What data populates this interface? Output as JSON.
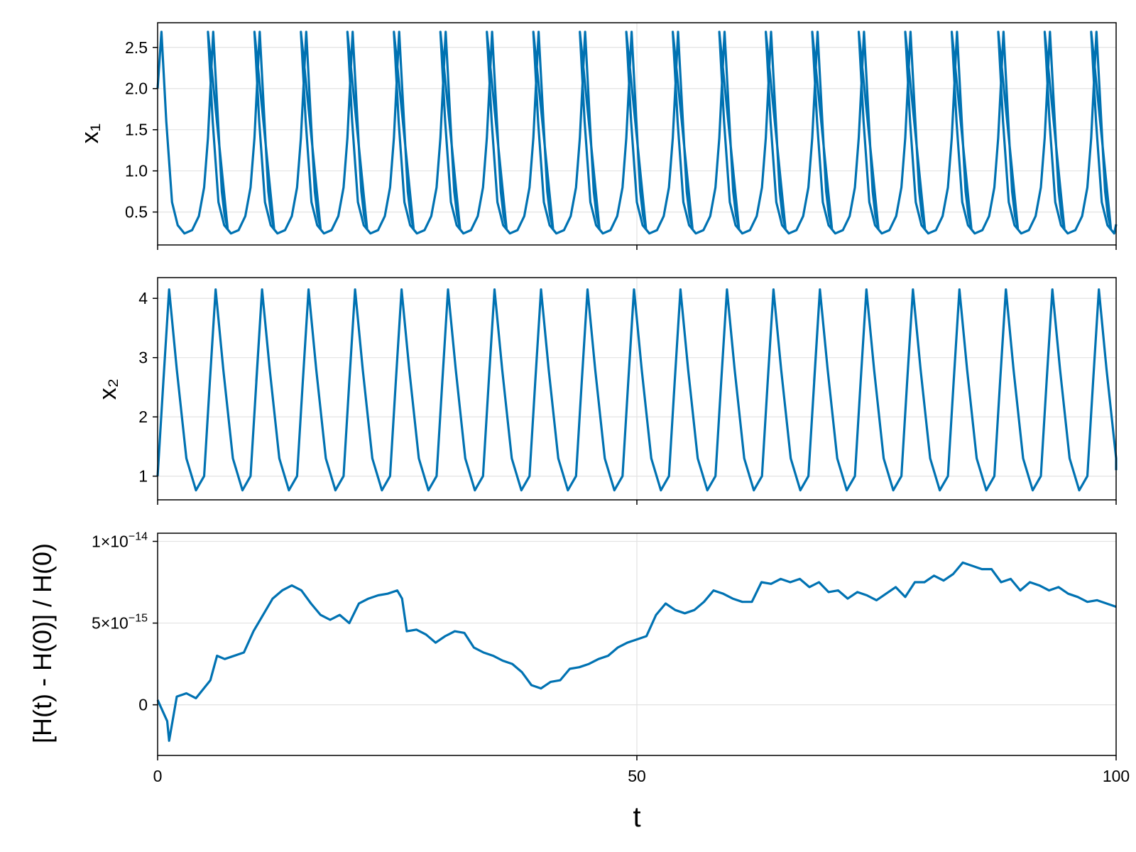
{
  "chart_data": [
    {
      "type": "line",
      "id": "x1",
      "ylabel": "x₁",
      "xlim": [
        0,
        100
      ],
      "ylim": [
        0.1,
        2.8
      ],
      "yticks": [
        0.5,
        1.0,
        1.5,
        2.0,
        2.5
      ],
      "ytick_labels": [
        "0.5",
        "1.0",
        "1.5",
        "2.0",
        "2.5"
      ],
      "grid": true,
      "color": "#0072b2",
      "series": [
        {
          "x": [
            0.0,
            0.4,
            0.9,
            1.5,
            2.1,
            2.8,
            3.6,
            4.3,
            4.85,
            5.25,
            5.55,
            5.8,
            6.3,
            6.7,
            7.0,
            7.3
          ],
          "y": [
            2.0,
            2.69,
            1.6,
            0.62,
            0.34,
            0.24,
            0.28,
            0.45,
            0.8,
            1.4,
            2.1,
            2.69,
            1.6,
            0.75,
            0.45,
            0.3
          ],
          "period": 4.85,
          "peaks": [
            0.4,
            5.25,
            10.1,
            14.95,
            19.8,
            24.65,
            29.5,
            34.35,
            39.2,
            44.05,
            48.9,
            53.75,
            58.6,
            63.45,
            68.3,
            73.15,
            78.0,
            82.85,
            87.7,
            92.55,
            97.4
          ],
          "peak_value": 2.69,
          "trough_value": 0.22,
          "end_value": 0.35
        }
      ]
    },
    {
      "type": "line",
      "id": "x2",
      "ylabel": "x₂",
      "xlim": [
        0,
        100
      ],
      "ylim": [
        0.6,
        4.35
      ],
      "yticks": [
        1,
        2,
        3,
        4
      ],
      "ytick_labels": [
        "1",
        "2",
        "3",
        "4"
      ],
      "grid": true,
      "color": "#0072b2",
      "series": [
        {
          "x": [
            0.0,
            0.6,
            1.2,
            2.0,
            3.0,
            4.0,
            4.85,
            5.45,
            6.05
          ],
          "y": [
            1.0,
            2.6,
            4.15,
            2.8,
            1.3,
            0.76,
            1.0,
            2.6,
            4.15
          ],
          "period": 4.85,
          "peaks": [
            1.2,
            6.05,
            10.9,
            15.75,
            20.6,
            25.45,
            30.3,
            35.15,
            40.0,
            44.85,
            49.7,
            54.55,
            59.4,
            64.25,
            69.1,
            73.95,
            78.8,
            83.65,
            88.5,
            93.35,
            98.2
          ],
          "peak_value": 4.15,
          "trough_value": 0.76,
          "end_value": 1.1
        }
      ]
    },
    {
      "type": "line",
      "id": "relative-energy-error",
      "ylabel": "[H(t) - H(0)] / H(0)",
      "xlabel": "t",
      "xlim": [
        0,
        100
      ],
      "xticks": [
        0,
        50,
        100
      ],
      "xtick_labels": [
        "0",
        "50",
        "100"
      ],
      "ylim": [
        -3.1e-15,
        1.05e-14
      ],
      "yticks": [
        0,
        5e-15,
        1e-14
      ],
      "ytick_labels": [
        {
          "mantissa": "0",
          "exponent": ""
        },
        {
          "mantissa": "5×10",
          "exponent": "−15"
        },
        {
          "mantissa": "1×10",
          "exponent": "−14"
        }
      ],
      "grid": true,
      "color": "#0072b2",
      "series": [
        {
          "x": [
            0,
            1,
            1.2,
            2,
            3,
            4,
            5.5,
            6.2,
            7,
            9,
            10,
            11,
            12,
            13,
            14,
            15,
            16,
            17,
            18,
            19,
            20,
            21,
            22,
            23,
            24,
            25,
            25.5,
            26,
            27,
            28,
            29,
            30,
            31,
            32,
            33,
            34,
            35,
            36,
            37,
            38,
            39,
            40,
            41,
            42,
            43,
            44,
            45,
            46,
            47,
            48,
            49,
            50,
            51,
            52,
            53,
            54,
            55,
            56,
            57,
            58,
            59,
            60,
            61,
            62,
            63,
            64,
            65,
            66,
            67,
            68,
            69,
            70,
            71,
            72,
            73,
            74,
            75,
            76,
            77,
            78,
            79,
            80,
            81,
            82,
            83,
            84,
            85,
            86,
            87,
            88,
            89,
            90,
            91,
            92,
            93,
            94,
            95,
            96,
            97,
            98,
            99,
            100
          ],
          "y": [
            3e-16,
            -1e-15,
            -2.2e-15,
            5e-16,
            7e-16,
            4e-16,
            1.5e-15,
            3e-15,
            2.8e-15,
            3.2e-15,
            4.5e-15,
            5.5e-15,
            6.5e-15,
            7e-15,
            7.3e-15,
            7e-15,
            6.2e-15,
            5.5e-15,
            5.2e-15,
            5.5e-15,
            5e-15,
            6.2e-15,
            6.5e-15,
            6.7e-15,
            6.8e-15,
            7e-15,
            6.5e-15,
            4.5e-15,
            4.6e-15,
            4.3e-15,
            3.8e-15,
            4.2e-15,
            4.5e-15,
            4.4e-15,
            3.5e-15,
            3.2e-15,
            3e-15,
            2.7e-15,
            2.5e-15,
            2e-15,
            1.2e-15,
            1e-15,
            1.4e-15,
            1.5e-15,
            2.2e-15,
            2.3e-15,
            2.5e-15,
            2.8e-15,
            3e-15,
            3.5e-15,
            3.8e-15,
            4e-15,
            4.2e-15,
            5.5e-15,
            6.2e-15,
            5.8e-15,
            5.6e-15,
            5.8e-15,
            6.3e-15,
            7e-15,
            6.8e-15,
            6.5e-15,
            6.3e-15,
            6.3e-15,
            7.5e-15,
            7.4e-15,
            7.7e-15,
            7.5e-15,
            7.7e-15,
            7.2e-15,
            7.5e-15,
            6.9e-15,
            7e-15,
            6.5e-15,
            6.9e-15,
            6.7e-15,
            6.4e-15,
            6.8e-15,
            7.2e-15,
            6.6e-15,
            7.5e-15,
            7.5e-15,
            7.9e-15,
            7.6e-15,
            8e-15,
            8.7e-15,
            8.5e-15,
            8.3e-15,
            8.3e-15,
            7.5e-15,
            7.7e-15,
            7e-15,
            7.5e-15,
            7.3e-15,
            7e-15,
            7.2e-15,
            6.8e-15,
            6.6e-15,
            6.3e-15,
            6.4e-15,
            6.2e-15,
            6e-15
          ]
        }
      ]
    }
  ]
}
